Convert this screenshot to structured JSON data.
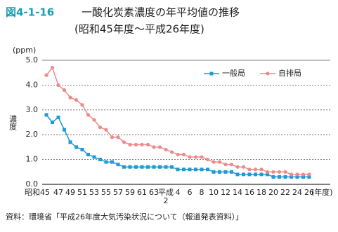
{
  "chart_data": {
    "type": "line",
    "figure_label": "図4-1-16",
    "title": "一酸化炭素濃度の年平均値の推移",
    "subtitle": "(昭和45年度～平成26年度)",
    "y_unit": "(ppm)",
    "y_label": "濃度",
    "x_unit": "(年度)",
    "source": "資料：環境省「平成26年度大気汚染状況について（報道発表資料）」",
    "categories": [
      "昭和45",
      null,
      "47",
      null,
      "49",
      null,
      "51",
      null,
      "53",
      null,
      "55",
      null,
      "57",
      null,
      "59",
      null,
      "61",
      null,
      "63",
      null,
      "平成2",
      null,
      "4",
      null,
      "6",
      null,
      "8",
      null,
      "10",
      null,
      "12",
      null,
      "14",
      null,
      "16",
      null,
      "18",
      null,
      "20",
      null,
      "22",
      null,
      "24",
      null,
      "26"
    ],
    "series": [
      {
        "name": "一般局",
        "color": "#1e9bd7",
        "marker": "square",
        "values": [
          2.8,
          2.5,
          2.7,
          2.2,
          1.7,
          1.5,
          1.4,
          1.2,
          1.1,
          1.0,
          0.9,
          0.9,
          0.8,
          0.7,
          0.7,
          0.7,
          0.7,
          0.7,
          0.7,
          0.7,
          0.7,
          0.7,
          0.6,
          0.6,
          0.6,
          0.6,
          0.6,
          0.6,
          0.5,
          0.5,
          0.5,
          0.5,
          0.4,
          0.4,
          0.4,
          0.4,
          0.4,
          0.4,
          0.3,
          0.3,
          0.3,
          0.3,
          0.3,
          0.3,
          0.3
        ]
      },
      {
        "name": "自排局",
        "color": "#ee8a8c",
        "marker": "circle",
        "values": [
          4.4,
          4.7,
          4.0,
          3.8,
          3.5,
          3.4,
          3.2,
          2.8,
          2.6,
          2.3,
          2.2,
          1.9,
          1.9,
          1.7,
          1.6,
          1.6,
          1.6,
          1.6,
          1.5,
          1.5,
          1.4,
          1.3,
          1.2,
          1.2,
          1.1,
          1.1,
          1.1,
          1.0,
          0.9,
          0.9,
          0.8,
          0.8,
          0.7,
          0.7,
          0.6,
          0.6,
          0.6,
          0.5,
          0.5,
          0.5,
          0.5,
          0.4,
          0.4,
          0.4,
          0.4
        ]
      }
    ],
    "ylim": [
      0,
      5
    ],
    "yticks": [
      {
        "value": 0,
        "label": "0.0"
      },
      {
        "value": 1,
        "label": "1.0"
      },
      {
        "value": 2,
        "label": "2.0"
      },
      {
        "value": 3,
        "label": "3.0"
      },
      {
        "value": 4,
        "label": "4.0"
      },
      {
        "value": 5,
        "label": "5.0"
      }
    ],
    "grid": true,
    "legend": "top-right"
  }
}
